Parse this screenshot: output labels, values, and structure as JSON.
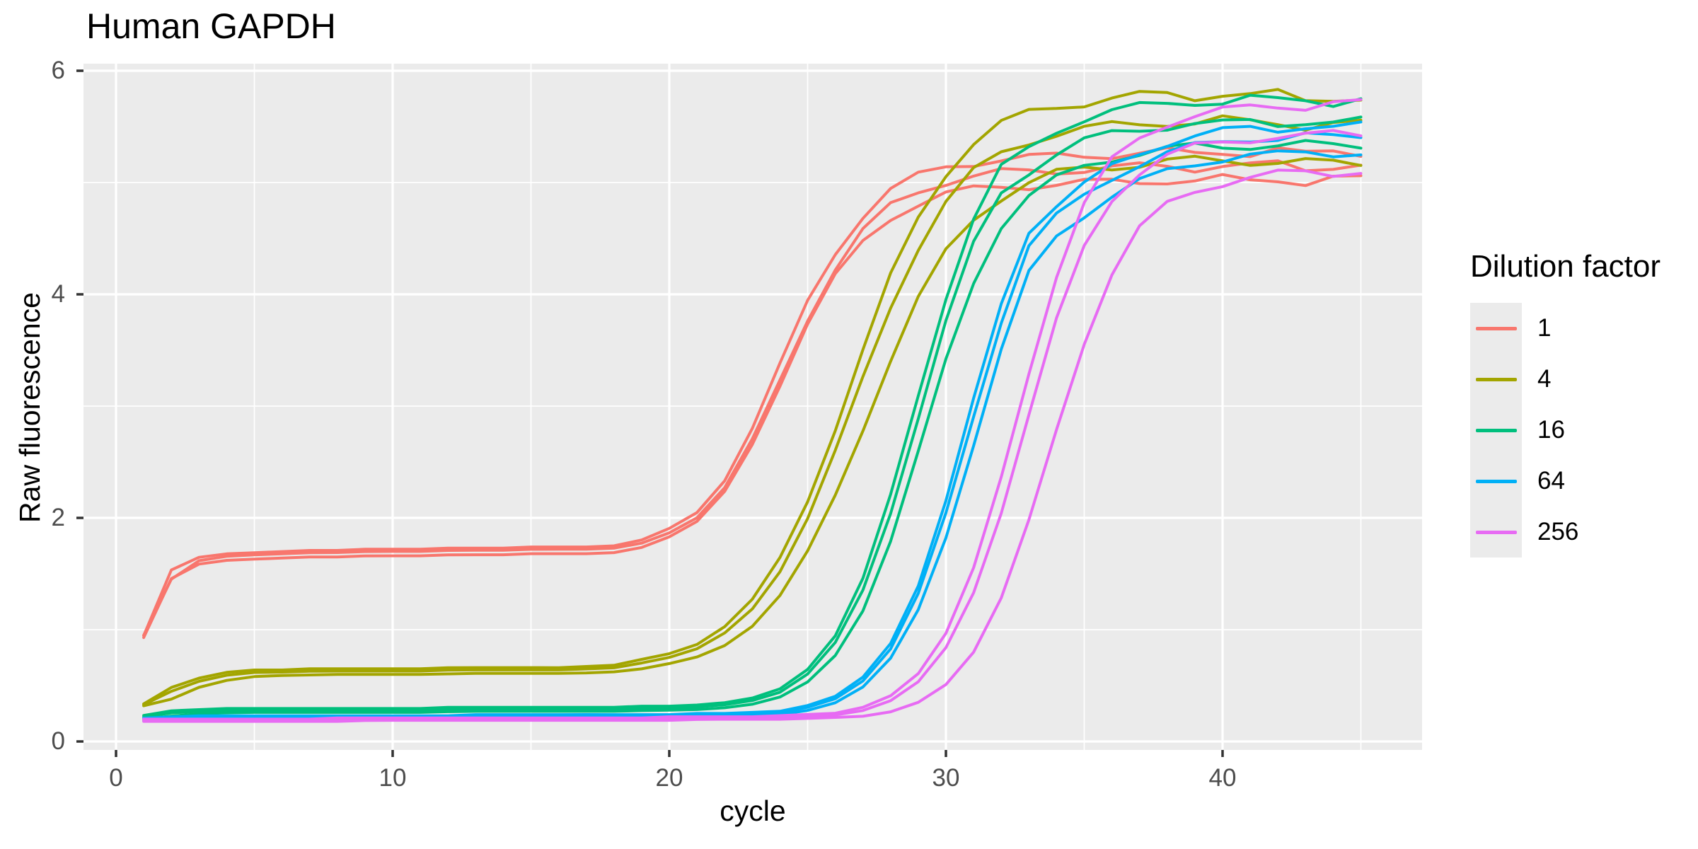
{
  "page": {
    "title": "Human GAPDH"
  },
  "legend": {
    "title": "Dilution factor",
    "items": [
      {
        "label": "1"
      },
      {
        "label": "4"
      },
      {
        "label": "16"
      },
      {
        "label": "64"
      },
      {
        "label": "256"
      }
    ]
  },
  "chart_data": {
    "type": "line",
    "title": "Human GAPDH",
    "xlabel": "cycle",
    "ylabel": "Raw fluorescence",
    "legend_title": "Dilution factor",
    "legend_position": "right",
    "grid": true,
    "panel_bg": "#EBEBEB",
    "grid_color": "#FFFFFF",
    "tick_color": "#333333",
    "tick_label_color": "#4D4D4D",
    "xlim": [
      -1.2,
      47.2
    ],
    "ylim": [
      -0.08,
      6.06
    ],
    "x_major_ticks": [
      0,
      10,
      20,
      30,
      40
    ],
    "x_minor_ticks": [
      5,
      15,
      25,
      35,
      45
    ],
    "y_major_ticks": [
      0,
      2,
      4,
      6
    ],
    "y_minor_ticks": [
      1,
      3,
      5
    ],
    "x_tick_labels": [
      "0",
      "10",
      "20",
      "30",
      "40"
    ],
    "y_tick_labels": [
      "0",
      "2",
      "4",
      "6"
    ],
    "x": [
      1,
      2,
      3,
      4,
      5,
      6,
      7,
      8,
      9,
      10,
      11,
      12,
      13,
      14,
      15,
      16,
      17,
      18,
      19,
      20,
      21,
      22,
      23,
      24,
      25,
      26,
      27,
      28,
      29,
      30,
      31,
      32,
      33,
      34,
      35,
      36,
      37,
      38,
      39,
      40,
      41,
      42,
      43,
      44,
      45
    ],
    "replicates_per_series": 3,
    "series": [
      {
        "name": "1",
        "color": "#F8766D",
        "baseline": 1.72,
        "wiggle_amp": 0.04,
        "values": [
          0.95,
          1.52,
          1.63,
          1.66,
          1.67,
          1.68,
          1.69,
          1.69,
          1.7,
          1.7,
          1.7,
          1.71,
          1.71,
          1.71,
          1.72,
          1.72,
          1.72,
          1.73,
          1.78,
          1.88,
          2.02,
          2.3,
          2.75,
          3.3,
          3.85,
          4.28,
          4.6,
          4.82,
          4.94,
          5.02,
          5.06,
          5.09,
          5.1,
          5.11,
          5.12,
          5.13,
          5.14,
          5.15,
          5.13,
          5.16,
          5.14,
          5.17,
          5.12,
          5.16,
          5.15
        ],
        "replicates": [
          {
            "gain": 1.03,
            "offset": 0.02,
            "shift": 0,
            "phase": 0.3
          },
          {
            "gain": 1.0,
            "offset": 0.0,
            "shift": 0.12,
            "phase": 2.2
          },
          {
            "gain": 0.975,
            "offset": -0.04,
            "shift": 0.05,
            "phase": 4.1
          }
        ]
      },
      {
        "name": "4",
        "color": "#A3A500",
        "baseline": 0.63,
        "wiggle_amp": 0.045,
        "values": [
          0.33,
          0.47,
          0.55,
          0.6,
          0.62,
          0.62,
          0.63,
          0.63,
          0.63,
          0.63,
          0.63,
          0.64,
          0.64,
          0.64,
          0.64,
          0.64,
          0.65,
          0.66,
          0.71,
          0.76,
          0.84,
          0.99,
          1.22,
          1.58,
          2.07,
          2.68,
          3.35,
          3.99,
          4.5,
          4.88,
          5.13,
          5.29,
          5.39,
          5.45,
          5.48,
          5.51,
          5.53,
          5.55,
          5.53,
          5.56,
          5.53,
          5.55,
          5.5,
          5.53,
          5.51
        ],
        "replicates": [
          {
            "gain": 1.045,
            "offset": 0.02,
            "shift": 0,
            "phase": 1.1
          },
          {
            "gain": 1.0,
            "offset": 0.0,
            "shift": 0.15,
            "phase": 3.0
          },
          {
            "gain": 0.935,
            "offset": -0.03,
            "shift": 0.55,
            "phase": 5.0
          }
        ]
      },
      {
        "name": "16",
        "color": "#00BF7D",
        "baseline": 0.28,
        "wiggle_amp": 0.04,
        "values": [
          0.22,
          0.26,
          0.27,
          0.28,
          0.28,
          0.28,
          0.28,
          0.28,
          0.28,
          0.28,
          0.28,
          0.29,
          0.29,
          0.29,
          0.29,
          0.29,
          0.29,
          0.29,
          0.3,
          0.3,
          0.31,
          0.33,
          0.37,
          0.45,
          0.62,
          0.91,
          1.4,
          2.12,
          2.99,
          3.84,
          4.51,
          4.95,
          5.12,
          5.28,
          5.38,
          5.44,
          5.48,
          5.51,
          5.53,
          5.52,
          5.55,
          5.53,
          5.55,
          5.52,
          5.55
        ],
        "replicates": [
          {
            "gain": 1.035,
            "offset": 0.015,
            "shift": 0,
            "phase": 0.7
          },
          {
            "gain": 1.0,
            "offset": 0.0,
            "shift": 0.1,
            "phase": 2.5
          },
          {
            "gain": 0.965,
            "offset": -0.02,
            "shift": 0.35,
            "phase": 4.6
          }
        ]
      },
      {
        "name": "64",
        "color": "#00B0F6",
        "baseline": 0.22,
        "wiggle_amp": 0.035,
        "values": [
          0.2,
          0.21,
          0.22,
          0.22,
          0.22,
          0.22,
          0.22,
          0.22,
          0.22,
          0.22,
          0.22,
          0.22,
          0.23,
          0.23,
          0.23,
          0.23,
          0.23,
          0.23,
          0.23,
          0.23,
          0.24,
          0.24,
          0.25,
          0.26,
          0.31,
          0.39,
          0.56,
          0.86,
          1.37,
          2.11,
          3.0,
          3.85,
          4.5,
          4.72,
          4.9,
          5.06,
          5.18,
          5.27,
          5.33,
          5.37,
          5.4,
          5.39,
          5.42,
          5.4,
          5.42
        ],
        "replicates": [
          {
            "gain": 1.015,
            "offset": 0.01,
            "shift": 0,
            "phase": 1.8
          },
          {
            "gain": 1.0,
            "offset": 0.0,
            "shift": 0.1,
            "phase": 3.6
          },
          {
            "gain": 0.975,
            "offset": -0.015,
            "shift": 0.3,
            "phase": 5.6
          }
        ]
      },
      {
        "name": "256",
        "color": "#E76BF3",
        "baseline": 0.19,
        "wiggle_amp": 0.04,
        "values": [
          0.19,
          0.19,
          0.19,
          0.19,
          0.19,
          0.19,
          0.19,
          0.2,
          0.2,
          0.2,
          0.2,
          0.2,
          0.2,
          0.2,
          0.2,
          0.2,
          0.2,
          0.2,
          0.2,
          0.21,
          0.21,
          0.21,
          0.21,
          0.22,
          0.23,
          0.24,
          0.29,
          0.39,
          0.58,
          0.92,
          1.47,
          2.25,
          3.15,
          3.97,
          4.57,
          4.95,
          5.15,
          5.27,
          5.33,
          5.37,
          5.4,
          5.42,
          5.41,
          5.44,
          5.43
        ],
        "replicates": [
          {
            "gain": 1.05,
            "offset": 0.01,
            "shift": 0,
            "phase": 0.9
          },
          {
            "gain": 1.0,
            "offset": 0.0,
            "shift": 0.25,
            "phase": 2.8
          },
          {
            "gain": 0.94,
            "offset": -0.01,
            "shift": 1.2,
            "phase": 4.8
          }
        ]
      }
    ]
  }
}
